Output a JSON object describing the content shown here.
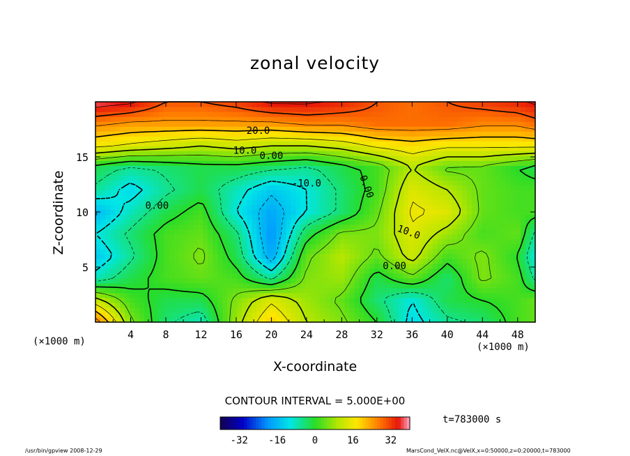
{
  "chart_data": {
    "type": "heatmap",
    "title": "zonal velocity",
    "xlabel": "X-coordinate",
    "ylabel": "Z-coordinate",
    "x_unit": "(×1000 m)",
    "xlim": [
      0,
      50
    ],
    "ylim": [
      0,
      20
    ],
    "x_ticks": [
      4,
      8,
      12,
      16,
      20,
      24,
      28,
      32,
      36,
      40,
      44,
      48
    ],
    "y_ticks": [
      5,
      10,
      15
    ],
    "contour_interval_text": "CONTOUR INTERVAL = 5.000E+00",
    "contour_interval": 5,
    "contour_labels": [
      "20.0",
      "10.0",
      "0.00",
      "-10.0",
      "0.00",
      "0.00",
      "10.0",
      "0.00"
    ],
    "colorbar": {
      "range": [
        -40,
        40
      ],
      "ticks": [
        -32,
        -16,
        0,
        16,
        32
      ],
      "colormap": "rainbow (blue=negative, red=positive)"
    },
    "field": {
      "x": [
        0,
        4,
        8,
        12,
        16,
        20,
        24,
        28,
        32,
        36,
        40,
        44,
        48,
        50
      ],
      "z": [
        0,
        2,
        4,
        6,
        8,
        10,
        12,
        14,
        16,
        18,
        20
      ],
      "values": [
        [
          28,
          6,
          -4,
          -8,
          8,
          20,
          10,
          6,
          0,
          -12,
          -6,
          -4,
          2,
          4
        ],
        [
          12,
          2,
          -2,
          -2,
          6,
          14,
          8,
          4,
          -4,
          -10,
          -2,
          0,
          2,
          4
        ],
        [
          -8,
          -2,
          2,
          4,
          2,
          -6,
          6,
          8,
          -2,
          4,
          -4,
          6,
          2,
          -6
        ],
        [
          -14,
          -6,
          2,
          6,
          -2,
          -18,
          4,
          10,
          4,
          12,
          2,
          6,
          0,
          -10
        ],
        [
          -10,
          -4,
          2,
          4,
          -4,
          -20,
          -2,
          6,
          6,
          14,
          8,
          2,
          4,
          -6
        ],
        [
          -16,
          -8,
          -2,
          2,
          -10,
          -18,
          -10,
          -4,
          4,
          16,
          14,
          4,
          2,
          2
        ],
        [
          -6,
          -12,
          -6,
          -2,
          -8,
          -14,
          -10,
          -4,
          2,
          14,
          10,
          4,
          2,
          2
        ],
        [
          -2,
          -6,
          -4,
          -2,
          -2,
          -4,
          -6,
          -2,
          2,
          10,
          4,
          4,
          0,
          -2
        ],
        [
          16,
          14,
          12,
          10,
          12,
          10,
          10,
          12,
          16,
          18,
          16,
          16,
          16,
          16
        ],
        [
          26,
          24,
          24,
          24,
          24,
          24,
          26,
          26,
          28,
          28,
          28,
          26,
          26,
          28
        ],
        [
          38,
          36,
          30,
          30,
          32,
          36,
          36,
          34,
          30,
          28,
          30,
          32,
          34,
          36
        ]
      ]
    }
  },
  "ui": {
    "time_label": "t=783000 s",
    "footer_left": "/usr/bin/gpview  2008-12-29",
    "footer_right": "MarsCond_VelX.nc@VelX,x=0:50000,z=0:20000,t=783000"
  }
}
